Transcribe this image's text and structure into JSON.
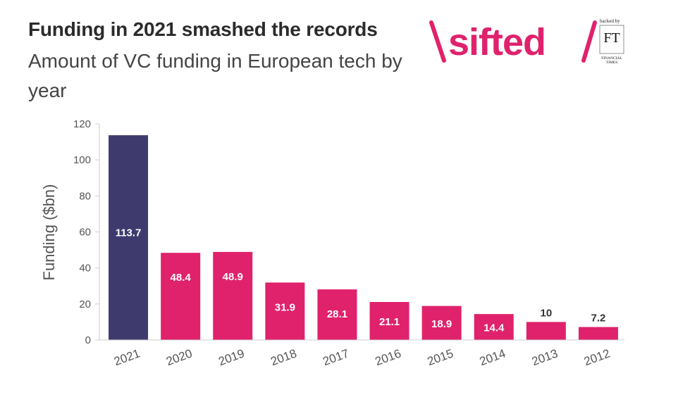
{
  "header": {
    "title": "Funding in 2021 smashed the records",
    "subtitle": "Amount of VC funding in European tech by year"
  },
  "logo": {
    "brand": "sifted",
    "backed_by": "backed by",
    "ft_mark": "FT",
    "ft_name_line1": "FINANCIAL",
    "ft_name_line2": "TIMES"
  },
  "colors": {
    "highlight": "#3f3a6e",
    "bar": "#e0226c",
    "brand": "#e0226c",
    "axis": "#cccccc",
    "label_inside": "#ffffff",
    "label_outside": "#333333"
  },
  "chart_data": {
    "type": "bar",
    "title": "Funding in 2021 smashed the records",
    "xlabel": "",
    "ylabel": "Funding ($bn)",
    "ylim": [
      0,
      120
    ],
    "yticks": [
      0,
      20,
      40,
      60,
      80,
      100,
      120
    ],
    "categories": [
      "2021",
      "2020",
      "2019",
      "2018",
      "2017",
      "2016",
      "2015",
      "2014",
      "2013",
      "2012"
    ],
    "values": [
      113.7,
      48.4,
      48.9,
      31.9,
      28.1,
      21.1,
      18.9,
      14.4,
      10,
      7.2
    ],
    "labels": [
      "113.7",
      "48.4",
      "48.9",
      "31.9",
      "28.1",
      "21.1",
      "18.9",
      "14.4",
      "10",
      "7.2"
    ],
    "highlight_index": 0,
    "grid": false
  }
}
